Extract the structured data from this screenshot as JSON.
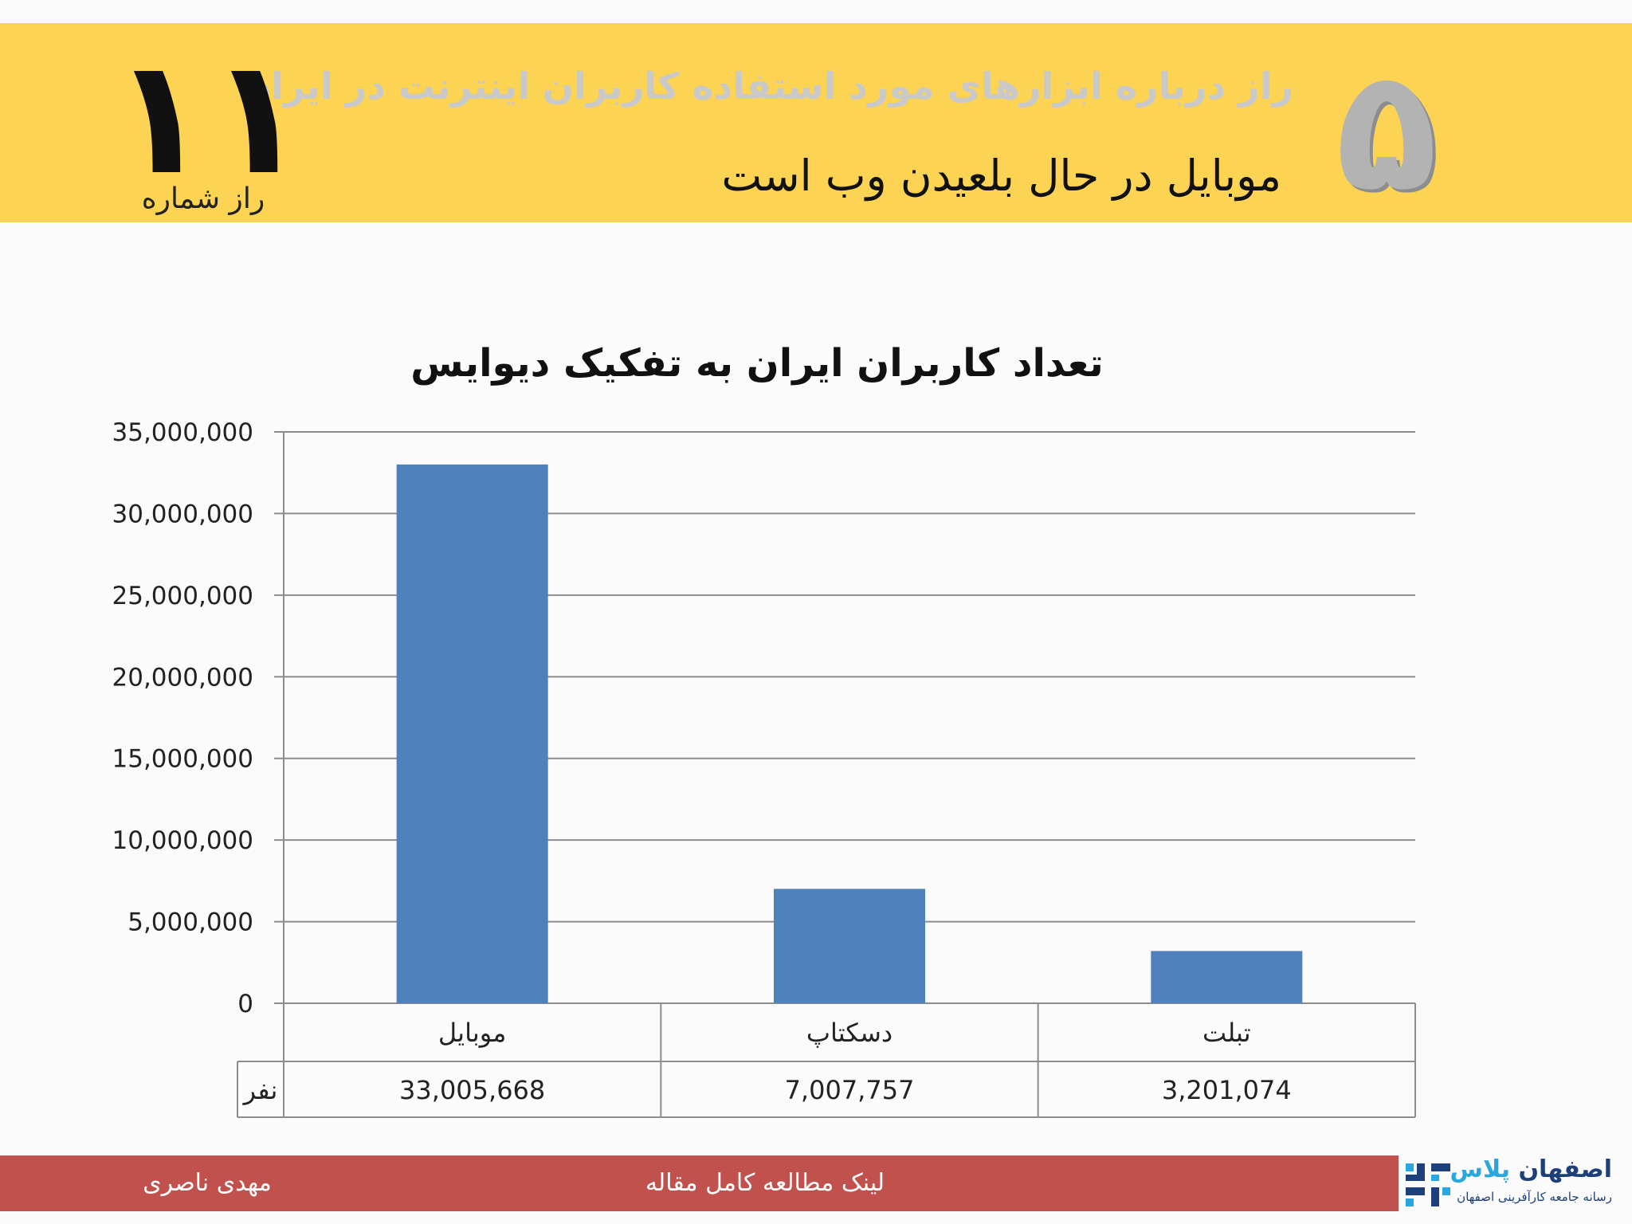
{
  "header": {
    "big_number": "۵",
    "subtitle": "راز درباره ابزارهای مورد استفاده کاربران اینترنت در ایران",
    "title": "موبایل در حال بلعیدن وب است",
    "secret_number": "۱۱",
    "secret_number_label": "راز شماره",
    "colors": {
      "background": "#fdd353"
    }
  },
  "chart_data": {
    "type": "bar",
    "title": "تعداد کاربران ایران به تفکیک دیوایس",
    "categories": [
      "موبایل",
      "دسکتاپ",
      "تبلت"
    ],
    "values": [
      33005668,
      7007757,
      3201074
    ],
    "value_labels": [
      "33,005,668",
      "7,007,757",
      "3,201,074"
    ],
    "unit_label": "نفر",
    "ylim": [
      0,
      35000000
    ],
    "yticks": [
      0,
      5000000,
      10000000,
      15000000,
      20000000,
      25000000,
      30000000,
      35000000
    ],
    "ytick_labels": [
      "0",
      "5,000,000",
      "10,000,000",
      "15,000,000",
      "20,000,000",
      "25,000,000",
      "30,000,000",
      "35,000,000"
    ],
    "grid": true,
    "data_table": true,
    "bar_color": "#4f81bd"
  },
  "footer": {
    "author": "مهدی ناصری",
    "article_link": "لینک مطالعه کامل مقاله",
    "colors": {
      "background": "#c0514d"
    }
  },
  "logo": {
    "name_main": "اصفهان",
    "name_accent": "پلاس",
    "tagline": "رسانه جامعه کارآفرینی اصفهان",
    "mark_icon": "esfahan-plus-logo-icon"
  }
}
